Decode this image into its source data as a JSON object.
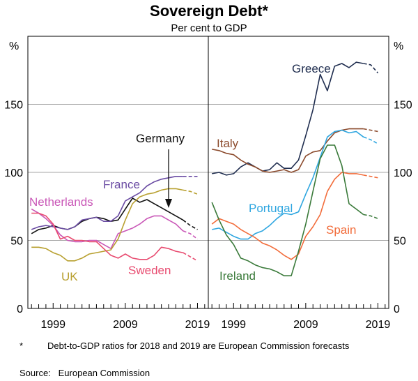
{
  "chart_data": {
    "title": "Sovereign Debt*",
    "subtitle": "Per cent to GDP",
    "type": "line",
    "y_unit": "%",
    "ylim": [
      0,
      200
    ],
    "yticks": [
      0,
      50,
      100,
      150
    ],
    "xlim": [
      1995.5,
      2020.5
    ],
    "xticks": [
      1999,
      2009,
      2019
    ],
    "forecast_start": 2017,
    "gridlines": true,
    "panels": [
      {
        "name": "left",
        "series": [
          {
            "name": "Germany",
            "color": "#111111",
            "x": [
              1996,
              1997,
              1998,
              1999,
              2000,
              2001,
              2002,
              2003,
              2004,
              2005,
              2006,
              2007,
              2008,
              2009,
              2010,
              2011,
              2012,
              2013,
              2014,
              2015,
              2016,
              2017,
              2018,
              2019
            ],
            "y": [
              55,
              58,
              59,
              61,
              59,
              58,
              60,
              64,
              66,
              67,
              66,
              64,
              65,
              73,
              81,
              78,
              80,
              77,
              74,
              71,
              68,
              65,
              61,
              58
            ]
          },
          {
            "name": "France",
            "color": "#6a4ba3",
            "x": [
              1996,
              1997,
              1998,
              1999,
              2000,
              2001,
              2002,
              2003,
              2004,
              2005,
              2006,
              2007,
              2008,
              2009,
              2010,
              2011,
              2012,
              2013,
              2014,
              2015,
              2016,
              2017,
              2018,
              2019
            ],
            "y": [
              58,
              60,
              61,
              60,
              59,
              58,
              60,
              65,
              66,
              67,
              64,
              64,
              68,
              79,
              82,
              85,
              90,
              93,
              95,
              96,
              97,
              97,
              97,
              97
            ]
          },
          {
            "name": "Netherlands",
            "color": "#c957b7",
            "x": [
              1996,
              1997,
              1998,
              1999,
              2000,
              2001,
              2002,
              2003,
              2004,
              2005,
              2006,
              2007,
              2008,
              2009,
              2010,
              2011,
              2012,
              2013,
              2014,
              2015,
              2016,
              2017,
              2018,
              2019
            ],
            "y": [
              73,
              70,
              66,
              61,
              54,
              50,
              49,
              49,
              50,
              50,
              47,
              44,
              55,
              57,
              59,
              62,
              66,
              68,
              68,
              65,
              62,
              57,
              55,
              51
            ]
          },
          {
            "name": "UK",
            "color": "#b8a030",
            "x": [
              1996,
              1997,
              1998,
              1999,
              2000,
              2001,
              2002,
              2003,
              2004,
              2005,
              2006,
              2007,
              2008,
              2009,
              2010,
              2011,
              2012,
              2013,
              2014,
              2015,
              2016,
              2017,
              2018,
              2019
            ],
            "y": [
              45,
              45,
              44,
              41,
              39,
              35,
              35,
              37,
              40,
              41,
              42,
              43,
              51,
              65,
              77,
              82,
              84,
              85,
              87,
              88,
              88,
              87,
              86,
              84
            ]
          },
          {
            "name": "Sweden",
            "color": "#e84a6f",
            "x": [
              1996,
              1997,
              1998,
              1999,
              2000,
              2001,
              2002,
              2003,
              2004,
              2005,
              2006,
              2007,
              2008,
              2009,
              2010,
              2011,
              2012,
              2013,
              2014,
              2015,
              2016,
              2017,
              2018,
              2019
            ],
            "y": [
              70,
              70,
              68,
              62,
              51,
              53,
              50,
              50,
              49,
              49,
              44,
              39,
              37,
              40,
              37,
              36,
              36,
              39,
              45,
              44,
              42,
              41,
              38,
              35
            ]
          }
        ],
        "annotations": [
          {
            "text": "Germany",
            "series": "Germany"
          },
          {
            "text": "France",
            "series": "France"
          },
          {
            "text": "Netherlands",
            "series": "Netherlands"
          },
          {
            "text": "UK",
            "series": "UK"
          },
          {
            "text": "Sweden",
            "series": "Sweden"
          }
        ]
      },
      {
        "name": "right",
        "series": [
          {
            "name": "Greece",
            "color": "#1f2d4f",
            "x": [
              1996,
              1997,
              1998,
              1999,
              2000,
              2001,
              2002,
              2003,
              2004,
              2005,
              2006,
              2007,
              2008,
              2009,
              2010,
              2011,
              2012,
              2013,
              2014,
              2015,
              2016,
              2017,
              2018,
              2019
            ],
            "y": [
              99,
              100,
              98,
              99,
              104,
              107,
              104,
              101,
              102,
              107,
              103,
              103,
              109,
              127,
              146,
              172,
              160,
              178,
              180,
              177,
              181,
              180,
              179,
              173
            ]
          },
          {
            "name": "Italy",
            "color": "#8b4a2c",
            "x": [
              1996,
              1997,
              1998,
              1999,
              2000,
              2001,
              2002,
              2003,
              2004,
              2005,
              2006,
              2007,
              2008,
              2009,
              2010,
              2011,
              2012,
              2013,
              2014,
              2015,
              2016,
              2017,
              2018,
              2019
            ],
            "y": [
              117,
              116,
              114,
              113,
              109,
              106,
              104,
              101,
              100,
              101,
              102,
              100,
              102,
              112,
              115,
              116,
              123,
              129,
              131,
              132,
              132,
              132,
              131,
              130
            ]
          },
          {
            "name": "Portugal",
            "color": "#2ea6e0",
            "x": [
              1996,
              1997,
              1998,
              1999,
              2000,
              2001,
              2002,
              2003,
              2004,
              2005,
              2006,
              2007,
              2008,
              2009,
              2010,
              2011,
              2012,
              2013,
              2014,
              2015,
              2016,
              2017,
              2018,
              2019
            ],
            "y": [
              58,
              59,
              56,
              53,
              51,
              51,
              55,
              57,
              61,
              66,
              70,
              69,
              71,
              84,
              96,
              111,
              126,
              130,
              131,
              129,
              130,
              126,
              124,
              121
            ]
          },
          {
            "name": "Spain",
            "color": "#f26c3a",
            "x": [
              1996,
              1997,
              1998,
              1999,
              2000,
              2001,
              2002,
              2003,
              2004,
              2005,
              2006,
              2007,
              2008,
              2009,
              2010,
              2011,
              2012,
              2013,
              2014,
              2015,
              2016,
              2017,
              2018,
              2019
            ],
            "y": [
              62,
              66,
              64,
              62,
              58,
              55,
              52,
              48,
              46,
              43,
              39,
              36,
              40,
              53,
              60,
              69,
              86,
              95,
              100,
              99,
              99,
              98,
              97,
              96
            ]
          },
          {
            "name": "Ireland",
            "color": "#3a7a3a",
            "x": [
              1996,
              1997,
              1998,
              1999,
              2000,
              2001,
              2002,
              2003,
              2004,
              2005,
              2006,
              2007,
              2008,
              2009,
              2010,
              2011,
              2012,
              2013,
              2014,
              2015,
              2016,
              2017,
              2018,
              2019
            ],
            "y": [
              78,
              65,
              54,
              47,
              37,
              35,
              32,
              30,
              29,
              27,
              24,
              24,
              42,
              62,
              86,
              110,
              120,
              120,
              105,
              77,
              73,
              69,
              68,
              66
            ]
          }
        ],
        "annotations": [
          {
            "text": "Greece",
            "series": "Greece"
          },
          {
            "text": "Italy",
            "series": "Italy"
          },
          {
            "text": "Portugal",
            "series": "Portugal"
          },
          {
            "text": "Spain",
            "series": "Spain"
          },
          {
            "text": "Ireland",
            "series": "Ireland"
          }
        ]
      }
    ]
  },
  "footnotes": {
    "star": "*",
    "note": "Debt-to-GDP ratios for 2018 and 2019 are European Commission forecasts",
    "source": "Source:   European Commission"
  }
}
